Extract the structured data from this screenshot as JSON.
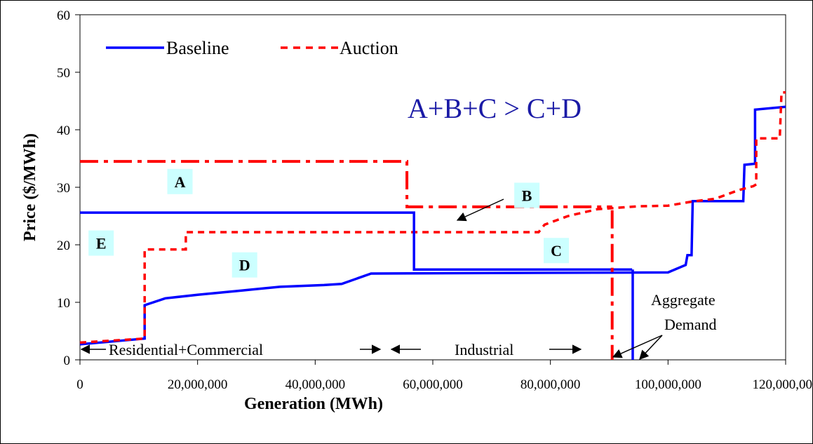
{
  "chart_data": {
    "type": "line",
    "title": "",
    "xlabel": "Generation (MWh)",
    "ylabel": "Price ($/MWh)",
    "xlim": [
      0,
      120000000
    ],
    "ylim": [
      0,
      60
    ],
    "x_ticks": [
      0,
      20000000,
      40000000,
      60000000,
      80000000,
      100000000,
      120000000
    ],
    "x_tick_labels": [
      "0",
      "20,000,000",
      "40,000,000",
      "60,000,000",
      "80,000,000",
      "100,000,000",
      "120,000,000"
    ],
    "y_ticks": [
      0,
      10,
      20,
      30,
      40,
      50,
      60
    ],
    "y_tick_labels": [
      "0",
      "10",
      "20",
      "30",
      "40",
      "50",
      "60"
    ],
    "grid": false,
    "legend_position": "top-left",
    "series": [
      {
        "name": "Baseline",
        "style": "solid",
        "color": "#0000ff",
        "points": [
          [
            0,
            2.7
          ],
          [
            11000000,
            3.7
          ],
          [
            11000000,
            9.5
          ],
          [
            14500000,
            10.7
          ],
          [
            20000000,
            11.3
          ],
          [
            27000000,
            12.0
          ],
          [
            34000000,
            12.7
          ],
          [
            41500000,
            13.0
          ],
          [
            44500000,
            13.2
          ],
          [
            49500000,
            15.0
          ],
          [
            70000000,
            15.1
          ],
          [
            100000000,
            15.2
          ],
          [
            103000000,
            16.5
          ],
          [
            103300000,
            18.2
          ],
          [
            104000000,
            18.2
          ],
          [
            104200000,
            27.6
          ],
          [
            112800000,
            27.6
          ],
          [
            113000000,
            33.9
          ],
          [
            114800000,
            34.1
          ],
          [
            114800000,
            43.5
          ],
          [
            120000000,
            44.0
          ]
        ]
      },
      {
        "name": "Auction",
        "style": "dashed",
        "color": "#ff0000",
        "points": [
          [
            0,
            3.0
          ],
          [
            11000000,
            3.7
          ],
          [
            11000000,
            19.2
          ],
          [
            18000000,
            19.2
          ],
          [
            18000000,
            22.2
          ],
          [
            78000000,
            22.2
          ],
          [
            79000000,
            23.5
          ],
          [
            83000000,
            25.0
          ],
          [
            88000000,
            26.2
          ],
          [
            95000000,
            26.7
          ],
          [
            100000000,
            26.8
          ],
          [
            104000000,
            27.5
          ],
          [
            108000000,
            28.0
          ],
          [
            112000000,
            29.5
          ],
          [
            114500000,
            30.2
          ],
          [
            115000000,
            30.5
          ],
          [
            115000000,
            38.5
          ],
          [
            119000000,
            38.5
          ],
          [
            119300000,
            46.5
          ],
          [
            120000000,
            46.5
          ]
        ]
      }
    ],
    "reference_lines": [
      {
        "name": "auction-price-line-A",
        "style": "dash-dot",
        "color": "#ff0000",
        "points": [
          [
            0,
            34.5
          ],
          [
            55600000,
            34.5
          ],
          [
            55600000,
            26.6
          ],
          [
            90500000,
            26.6
          ]
        ]
      },
      {
        "name": "baseline-price-line",
        "style": "solid",
        "color": "#0000ff",
        "points": [
          [
            0,
            25.6
          ],
          [
            56800000,
            25.6
          ],
          [
            56800000,
            15.7
          ],
          [
            93900000,
            15.7
          ]
        ]
      },
      {
        "name": "auction-demand-line",
        "style": "dash-dot",
        "color": "#ff0000",
        "points": [
          [
            90500000,
            26.0
          ],
          [
            90500000,
            0
          ]
        ]
      },
      {
        "name": "baseline-demand-line",
        "style": "solid",
        "color": "#0000ff",
        "points": [
          [
            94000000,
            15.7
          ],
          [
            94000000,
            0
          ]
        ]
      }
    ],
    "region_labels": [
      {
        "text": "A",
        "x": 17000000,
        "y": 31.0
      },
      {
        "text": "B",
        "x": 76000000,
        "y": 28.6
      },
      {
        "text": "C",
        "x": 81000000,
        "y": 19.0
      },
      {
        "text": "D",
        "x": 28000000,
        "y": 16.5
      },
      {
        "text": "E",
        "x": 3600000,
        "y": 20.3
      }
    ],
    "annotations": {
      "equation": "A+B+C > C+D",
      "residential": "Residential+Commercial",
      "industrial": "Industrial",
      "aggregate_demand_line1": "Aggregate",
      "aggregate_demand_line2": "Demand"
    }
  }
}
